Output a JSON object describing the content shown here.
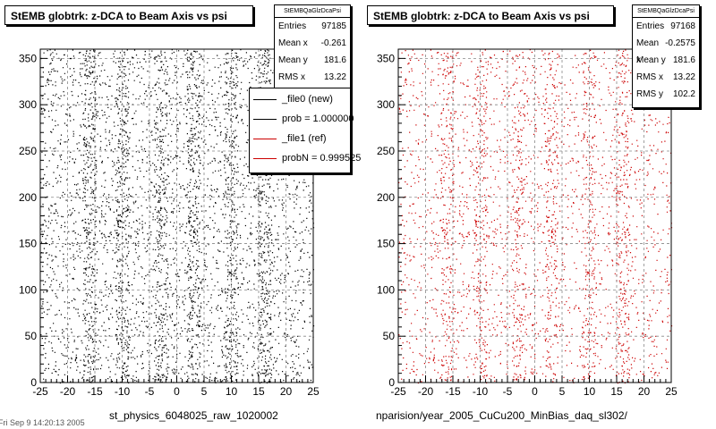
{
  "panels": [
    {
      "title": "StEMB globtrk: z-DCA to Beam Axis vs psi",
      "stats": {
        "name": "StEMBQaGlzDcaPsi",
        "rows": [
          {
            "label": "Entries",
            "value": "97185"
          },
          {
            "label": "Mean x",
            "value": "-0.261"
          },
          {
            "label": "Mean y",
            "value": "181.6"
          },
          {
            "label": "RMS x",
            "value": "13.22"
          }
        ]
      },
      "legend": [
        {
          "label": "_file0 (new)",
          "color": "#000000"
        },
        {
          "label": "prob = 1.000000",
          "color": "#000000"
        },
        {
          "label": "_file1 (ref)",
          "color": "#cc0000"
        },
        {
          "label": "probN = 0.999525",
          "color": "#cc0000"
        }
      ],
      "footer": "st_physics_6048025_raw_1020002"
    },
    {
      "title": "StEMB globtrk: z-DCA to Beam Axis vs psi",
      "stats": {
        "name": "StEMBQaGlzDcaPsi",
        "rows": [
          {
            "label": "Entries",
            "value": "97168"
          },
          {
            "label": "Mean x",
            "value": "-0.2575"
          },
          {
            "label": "Mean y",
            "value": "181.6"
          },
          {
            "label": "RMS x",
            "value": "13.22"
          },
          {
            "label": "RMS y",
            "value": "102.2"
          }
        ]
      },
      "footer": "nparision/year_2005_CuCu200_MinBias_daq_sl302/"
    }
  ],
  "corner_text": "Fri Sep  9 14:20:13 2005",
  "chart_data": [
    {
      "type": "scatter",
      "title": "StEMB globtrk: z-DCA to Beam Axis vs psi",
      "color": "#000000",
      "xlim": [
        -25,
        25
      ],
      "ylim": [
        0,
        360
      ],
      "x_ticks": [
        "-25",
        "-20",
        "-15",
        "-10",
        "-5",
        "0",
        "5",
        "10",
        "15",
        "20",
        "25"
      ],
      "y_ticks": [
        "0",
        "50",
        "100",
        "150",
        "200",
        "250",
        "300",
        "350"
      ],
      "grid": true,
      "entries": 97185,
      "mean_x": -0.261,
      "mean_y": 181.6,
      "rms_x": 13.22,
      "vertical_bands_x": [
        -16,
        -10,
        -3,
        3,
        10,
        16
      ]
    },
    {
      "type": "scatter",
      "title": "StEMB globtrk: z-DCA to Beam Axis vs psi",
      "color": "#cc0000",
      "xlim": [
        -25,
        25
      ],
      "ylim": [
        0,
        360
      ],
      "x_ticks": [
        "-25",
        "-20",
        "-15",
        "-10",
        "-5",
        "0",
        "5",
        "10",
        "15",
        "20",
        "25"
      ],
      "y_ticks": [
        "0",
        "50",
        "100",
        "150",
        "200",
        "250",
        "300",
        "350"
      ],
      "grid": true,
      "entries": 97168,
      "mean_x": -0.2575,
      "mean_y": 181.6,
      "rms_x": 13.22,
      "rms_y": 102.2,
      "vertical_bands_x": [
        -16,
        -10,
        -3,
        3,
        10,
        16
      ]
    }
  ]
}
